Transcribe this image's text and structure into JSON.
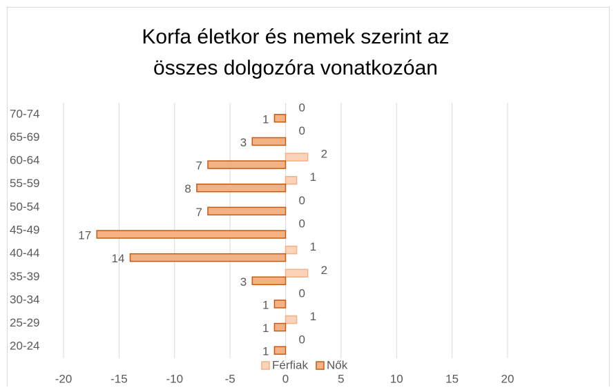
{
  "chart_data": {
    "type": "bar",
    "orientation": "horizontal",
    "title": "Korfa életkor és nemek szerint az összes dolgozóra vonatkozóan",
    "categories": [
      "20-24",
      "25-29",
      "30-34",
      "35-39",
      "40-44",
      "45-49",
      "50-54",
      "55-59",
      "60-64",
      "65-69",
      "70-74"
    ],
    "series": [
      {
        "name": "Férfiak",
        "color": "#fbd3b9",
        "values": [
          0,
          1,
          0,
          2,
          1,
          0,
          0,
          1,
          2,
          0,
          0
        ]
      },
      {
        "name": "Nők",
        "color": "#f4b183",
        "values": [
          -1,
          -1,
          -1,
          -3,
          -14,
          -17,
          -7,
          -8,
          -7,
          -3,
          -1
        ],
        "value_labels": [
          "1",
          "1",
          "1",
          "3",
          "14",
          "17",
          "7",
          "8",
          "7",
          "3",
          "1"
        ]
      }
    ],
    "xlim": [
      -20,
      20
    ],
    "xticks": [
      -20,
      -15,
      -10,
      -5,
      0,
      5,
      10,
      15,
      20
    ],
    "grid": true,
    "legend": "bottom"
  }
}
